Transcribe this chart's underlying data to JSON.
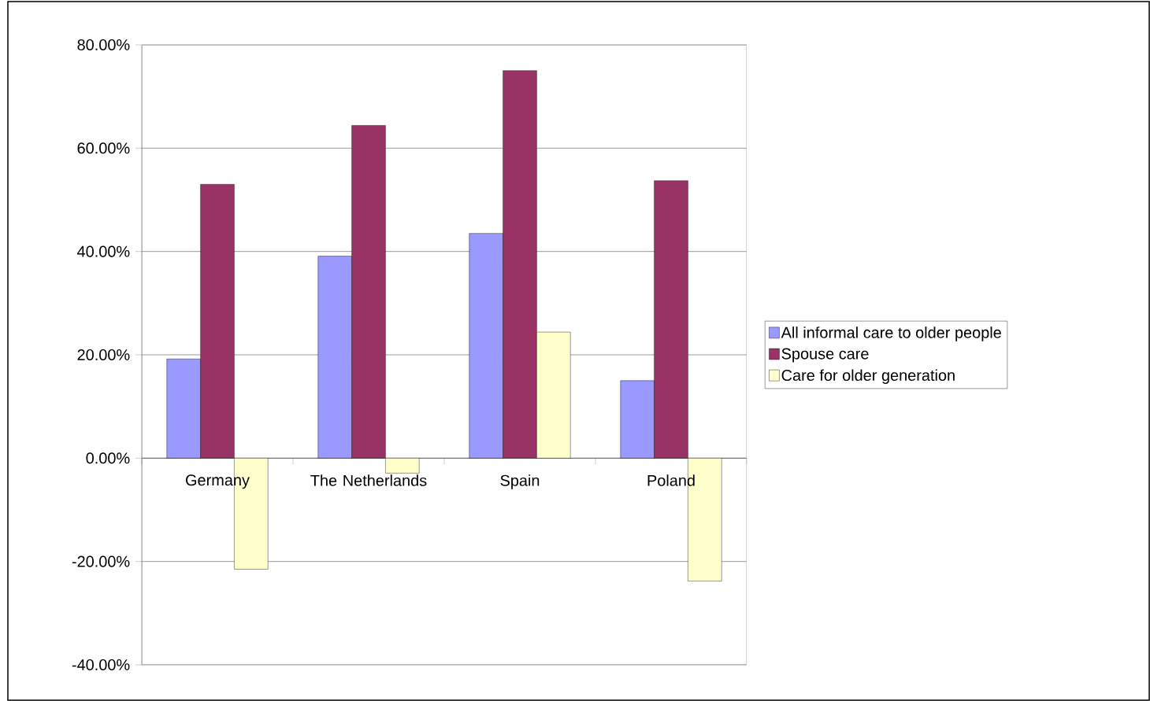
{
  "chart_data": {
    "type": "bar",
    "categories": [
      "Germany",
      "The Netherlands",
      "Spain",
      "Poland"
    ],
    "series": [
      {
        "name": "All informal care to older people",
        "color": "#9999ff",
        "values": [
          19.2,
          39.1,
          43.5,
          15.0
        ]
      },
      {
        "name": "Spouse care",
        "color": "#993366",
        "values": [
          53.0,
          64.4,
          75.0,
          53.7
        ]
      },
      {
        "name": "Care for older generation",
        "color": "#ffffcc",
        "values": [
          -21.5,
          -2.9,
          24.4,
          -23.8
        ]
      }
    ],
    "ylim": [
      -40,
      80
    ],
    "yticks": [
      {
        "value": -40,
        "label": "-40.00%"
      },
      {
        "value": -20,
        "label": "-20.00%"
      },
      {
        "value": 0,
        "label": "0.00%"
      },
      {
        "value": 20,
        "label": "20.00%"
      },
      {
        "value": 40,
        "label": "40.00%"
      },
      {
        "value": 60,
        "label": "60.00%"
      },
      {
        "value": 80,
        "label": "80.00%"
      }
    ],
    "grid": "y",
    "legend": "right"
  }
}
